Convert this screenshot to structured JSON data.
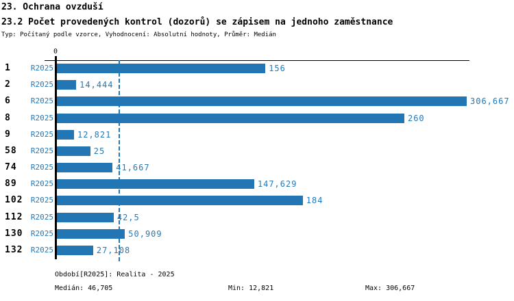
{
  "header": {
    "title_line1": "23. Ochrana ovzduší",
    "title_line2": "23.2 Počet provedených kontrol (dozorů) se zápisem na jednoho zaměstnance",
    "subtitle": "Typ: Počítaný podle vzorce, Vyhodnocení: Absolutní hodnoty, Průměr: Medián"
  },
  "axis": {
    "zero_label": "0"
  },
  "colors": {
    "bar": "#2276B4",
    "text_blue": "#2379B8",
    "axis_black": "#000000"
  },
  "chart_data": {
    "type": "bar",
    "orientation": "horizontal",
    "title": "23.2 Počet provedených kontrol (dozorů) se zápisem na jednoho zaměstnance",
    "categories": [
      "1",
      "2",
      "6",
      "8",
      "9",
      "58",
      "74",
      "89",
      "102",
      "112",
      "130",
      "132"
    ],
    "series": [
      {
        "name": "R2025",
        "values": [
          156,
          14.444,
          306.667,
          260,
          12.821,
          25,
          41.667,
          147.629,
          184,
          42.5,
          50.909,
          27.108
        ],
        "value_labels": [
          "156",
          "14,444",
          "306,667",
          "260",
          "12,821",
          "25",
          "41,667",
          "147,629",
          "184",
          "42,5",
          "50,909",
          "27,108"
        ]
      }
    ],
    "xlim": [
      0,
      306.667
    ],
    "median_line_value": 46.705,
    "grid": false,
    "legend_position": "none"
  },
  "footer": {
    "period": "Období[R2025]: Realita - 2025",
    "median": "Medián: 46,705",
    "min": "Min: 12,821",
    "max": "Max: 306,667"
  }
}
